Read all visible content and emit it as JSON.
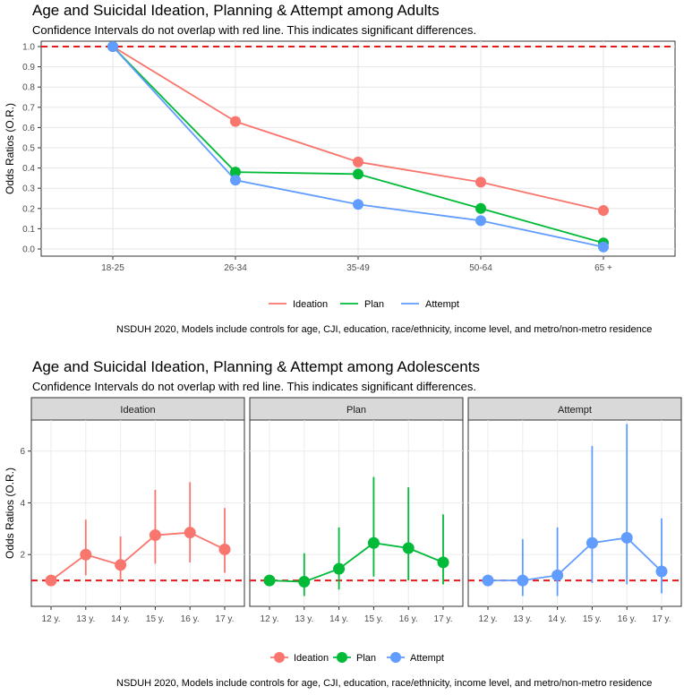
{
  "adults": {
    "title": "Age and Suicidal Ideation, Planning & Attempt among Adults",
    "subtitle": "Confidence Intervals do not overlap with red line. This indicates significant differences.",
    "caption": "NSDUH 2020, Models include controls for age, CJI, education, race/ethnicity, income level, and metro/non-metro residence"
  },
  "adolescents": {
    "title": "Age and Suicidal Ideation, Planning & Attempt among Adolescents",
    "subtitle": "Confidence Intervals do not overlap with red line. This indicates significant differences.",
    "caption": "NSDUH 2020, Models include controls for age, CJI, education, race/ethnicity, income level, and metro/non-metro residence"
  },
  "colors": {
    "ideation": "#f8766d",
    "plan": "#00ba38",
    "attempt": "#619cff",
    "reference": "#e41a1c"
  },
  "chart_data": [
    {
      "type": "line",
      "title": "Age and Suicidal Ideation, Planning & Attempt among Adults",
      "xlabel": "",
      "ylabel": "Odds Ratios (O.R.)",
      "categories": [
        "18-25",
        "26-34",
        "35-49",
        "50-64",
        "65 +"
      ],
      "ylim": [
        0,
        1.0
      ],
      "yticks": [
        "0.0",
        "0.1",
        "0.2",
        "0.3",
        "0.4",
        "0.5",
        "0.6",
        "0.7",
        "0.8",
        "0.9",
        "1.0"
      ],
      "reference_line": 1.0,
      "grid": true,
      "legend": {
        "position": "bottom",
        "entries": [
          "Ideation",
          "Plan",
          "Attempt"
        ]
      },
      "series": [
        {
          "name": "Ideation",
          "values": [
            1.0,
            0.63,
            0.43,
            0.33,
            0.19
          ]
        },
        {
          "name": "Plan",
          "values": [
            1.0,
            0.38,
            0.37,
            0.2,
            0.03
          ]
        },
        {
          "name": "Attempt",
          "values": [
            1.0,
            0.34,
            0.22,
            0.14,
            0.01
          ]
        }
      ]
    },
    {
      "type": "line",
      "title": "Age and Suicidal Ideation, Planning & Attempt among Adolescents",
      "xlabel": "",
      "ylabel": "Odds Ratios (O.R.)",
      "categories": [
        "12 y.",
        "13 y.",
        "14 y.",
        "15 y.",
        "16 y.",
        "17 y."
      ],
      "ylim": [
        0,
        7.2
      ],
      "yticks": [
        "2",
        "4",
        "6"
      ],
      "reference_line": 1.0,
      "grid": true,
      "legend": {
        "position": "bottom",
        "entries": [
          "Ideation",
          "Plan",
          "Attempt"
        ]
      },
      "facets": [
        {
          "name": "Ideation",
          "values": [
            1.0,
            2.0,
            1.6,
            2.75,
            2.85,
            2.2
          ],
          "lower": [
            1.0,
            1.2,
            1.0,
            1.65,
            1.7,
            1.3
          ],
          "upper": [
            1.0,
            3.35,
            2.7,
            4.5,
            4.8,
            3.8
          ]
        },
        {
          "name": "Plan",
          "values": [
            1.0,
            0.95,
            1.45,
            2.45,
            2.25,
            1.7
          ],
          "lower": [
            1.0,
            0.4,
            0.65,
            1.15,
            1.0,
            0.85
          ],
          "upper": [
            1.0,
            2.05,
            3.05,
            5.0,
            4.6,
            3.55
          ]
        },
        {
          "name": "Attempt",
          "values": [
            1.0,
            1.0,
            1.2,
            2.45,
            2.65,
            1.35
          ],
          "lower": [
            1.0,
            0.4,
            0.4,
            0.9,
            0.85,
            0.5
          ],
          "upper": [
            1.0,
            2.6,
            3.05,
            6.2,
            7.05,
            3.4
          ]
        }
      ]
    }
  ]
}
